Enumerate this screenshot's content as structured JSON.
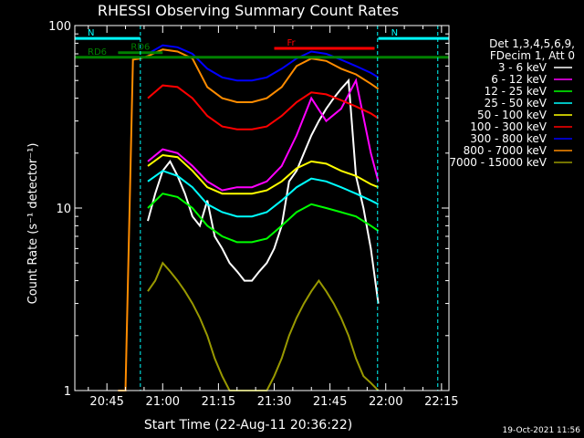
{
  "chart_data": {
    "type": "line",
    "title": "RHESSI Observing Summary Count Rates",
    "xlabel": "Start Time (22-Aug-11 20:36:22)",
    "ylabel": "Count Rate (s⁻¹ detector⁻¹)",
    "footer": "19-Oct-2021 11:56",
    "y_scale": "log",
    "ylim": [
      1,
      100
    ],
    "xlim_minutes": [
      36.37,
      137.0
    ],
    "x_ticks": [
      {
        "label": "20:45",
        "minute": 45
      },
      {
        "label": "21:00",
        "minute": 60
      },
      {
        "label": "21:15",
        "minute": 75
      },
      {
        "label": "21:30",
        "minute": 90
      },
      {
        "label": "21:45",
        "minute": 105
      },
      {
        "label": "22:00",
        "minute": 120
      },
      {
        "label": "22:15",
        "minute": 135
      }
    ],
    "y_ticks": [
      {
        "label": "1",
        "value": 1
      },
      {
        "label": "10",
        "value": 10
      },
      {
        "label": "100",
        "value": 100
      }
    ],
    "legend_header": [
      "Det 1,3,4,5,6,9,",
      "FDecim 1, Att 0"
    ],
    "legend_position": "right",
    "series": [
      {
        "name": "3 - 6 keV",
        "color": "#ffffff",
        "x": [
          56,
          58,
          60,
          62,
          64,
          66,
          68,
          70,
          72,
          74,
          76,
          78,
          80,
          82,
          84,
          86,
          88,
          90,
          92,
          94,
          96,
          98,
          100,
          102,
          104,
          106,
          108,
          110,
          112,
          114,
          116,
          118
        ],
        "y": [
          8.5,
          12,
          16,
          18,
          15,
          12,
          9,
          8,
          11,
          7,
          6,
          5,
          4.5,
          4,
          4,
          4.5,
          5,
          6,
          8,
          14,
          16,
          20,
          25,
          30,
          35,
          40,
          45,
          50,
          15,
          10,
          6,
          3
        ]
      },
      {
        "name": "6 - 12 keV",
        "color": "#ff00ff",
        "x": [
          56,
          60,
          64,
          68,
          72,
          76,
          80,
          84,
          88,
          92,
          96,
          100,
          104,
          108,
          112,
          116,
          118
        ],
        "y": [
          18,
          21,
          20,
          17,
          14,
          12.5,
          13,
          13,
          14,
          17,
          25,
          40,
          30,
          35,
          50,
          20,
          14
        ]
      },
      {
        "name": "12 - 25 keV",
        "color": "#00ff00",
        "x": [
          56,
          60,
          64,
          68,
          72,
          76,
          80,
          84,
          88,
          92,
          96,
          100,
          104,
          108,
          112,
          116,
          118
        ],
        "y": [
          10,
          12,
          11.5,
          10,
          8,
          7,
          6.5,
          6.5,
          6.8,
          8,
          9.5,
          10.5,
          10,
          9.5,
          9,
          8,
          7.5
        ]
      },
      {
        "name": "25 - 50 keV",
        "color": "#00ffff",
        "x": [
          56,
          60,
          64,
          68,
          72,
          76,
          80,
          84,
          88,
          92,
          96,
          100,
          104,
          108,
          112,
          116,
          118
        ],
        "y": [
          14,
          16,
          15,
          13,
          10.5,
          9.5,
          9,
          9,
          9.5,
          11,
          13,
          14.5,
          14,
          13,
          12,
          11,
          10.5
        ]
      },
      {
        "name": "50 - 100 keV",
        "color": "#ffff00",
        "x": [
          56,
          60,
          64,
          68,
          72,
          76,
          80,
          84,
          88,
          92,
          96,
          100,
          104,
          108,
          112,
          116,
          118
        ],
        "y": [
          17,
          19.5,
          19,
          16,
          13,
          12,
          12,
          12,
          12.5,
          14,
          16.5,
          18,
          17.5,
          16,
          15,
          13.5,
          13
        ]
      },
      {
        "name": "100 - 300 keV",
        "color": "#ff0000",
        "x": [
          56,
          60,
          64,
          68,
          72,
          76,
          80,
          84,
          88,
          92,
          96,
          100,
          104,
          108,
          112,
          116,
          118
        ],
        "y": [
          40,
          47,
          46,
          40,
          32,
          28,
          27,
          27,
          28,
          32,
          38,
          43,
          42,
          39,
          36,
          33,
          31
        ]
      },
      {
        "name": "300 - 800 keV",
        "color": "#0000ff",
        "x": [
          56,
          60,
          64,
          68,
          72,
          76,
          80,
          84,
          88,
          92,
          96,
          100,
          104,
          108,
          112,
          116,
          118
        ],
        "y": [
          70,
          78,
          76,
          70,
          58,
          52,
          50,
          50,
          52,
          58,
          66,
          72,
          70,
          65,
          60,
          55,
          52
        ]
      },
      {
        "name": "800 - 7000 keV",
        "color": "#ff8c00",
        "x": [
          48,
          50,
          52,
          54,
          56,
          60,
          64,
          68,
          72,
          76,
          80,
          84,
          88,
          92,
          96,
          100,
          104,
          108,
          112,
          116,
          118
        ],
        "y": [
          1,
          1,
          65,
          66,
          68,
          74,
          72,
          66,
          46,
          40,
          38,
          38,
          40,
          46,
          60,
          66,
          64,
          58,
          54,
          48,
          45
        ]
      },
      {
        "name": "7000 - 15000 keV",
        "color": "#999900",
        "x": [
          56,
          58,
          60,
          62,
          64,
          66,
          68,
          70,
          72,
          74,
          76,
          78,
          80,
          82,
          84,
          86,
          88,
          90,
          92,
          94,
          96,
          98,
          100,
          102,
          104,
          106,
          108,
          110,
          112,
          114,
          116,
          118
        ],
        "y": [
          3.5,
          4,
          5,
          4.5,
          4,
          3.5,
          3,
          2.5,
          2,
          1.5,
          1.2,
          1,
          1,
          1,
          1,
          1,
          1,
          1.2,
          1.5,
          2,
          2.5,
          3,
          3.5,
          4,
          3.5,
          3,
          2.5,
          2,
          1.5,
          1.2,
          1.1,
          1
        ]
      }
    ],
    "annotations": [
      {
        "label": "N",
        "color": "#00ffff",
        "x0": 36.37,
        "x1": 54,
        "y": 85
      },
      {
        "label": "N",
        "color": "#00ffff",
        "x0": 118,
        "x1": 137,
        "y": 85
      },
      {
        "label": "RD6",
        "color": "#008000",
        "x0": 36.37,
        "x1": 137,
        "y": 67
      },
      {
        "label": "RD6",
        "color": "#008000",
        "x0": 48,
        "x1": 60,
        "y": 71
      },
      {
        "label": "Fr",
        "color": "#ff0000",
        "x0": 90,
        "x1": 117,
        "y": 75
      }
    ],
    "vertical_lines": [
      {
        "minute": 54,
        "color": "#00ffff"
      },
      {
        "minute": 117.8,
        "color": "#00ffff"
      },
      {
        "minute": 134,
        "color": "#00ffff"
      }
    ]
  }
}
